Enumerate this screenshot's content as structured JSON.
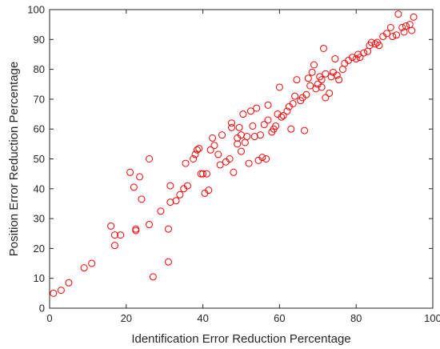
{
  "chart_data": {
    "type": "scatter",
    "title": "",
    "xlabel": "Identification Error Reduction Percentage",
    "ylabel": "Position Error Reduction Percentage",
    "xlim": [
      0,
      100
    ],
    "ylim": [
      0,
      100
    ],
    "xticks": [
      0,
      20,
      40,
      60,
      80,
      100
    ],
    "yticks": [
      0,
      10,
      20,
      30,
      40,
      50,
      60,
      70,
      80,
      90,
      100
    ],
    "grid": false,
    "marker": "circle",
    "color": "#ff0000",
    "points": [
      [
        1,
        5
      ],
      [
        3,
        6
      ],
      [
        5,
        8.5
      ],
      [
        9,
        13.5
      ],
      [
        11,
        15
      ],
      [
        16,
        27.5
      ],
      [
        17,
        21
      ],
      [
        17,
        24.5
      ],
      [
        18.5,
        24.5
      ],
      [
        21,
        45.5
      ],
      [
        22,
        40.5
      ],
      [
        22.5,
        26
      ],
      [
        22.5,
        26.5
      ],
      [
        23.5,
        44
      ],
      [
        24,
        36.5
      ],
      [
        26,
        28
      ],
      [
        26,
        50
      ],
      [
        27,
        10.5
      ],
      [
        29,
        32.5
      ],
      [
        31,
        15.5
      ],
      [
        31,
        26.5
      ],
      [
        31.5,
        35.5
      ],
      [
        31.5,
        41
      ],
      [
        33,
        36
      ],
      [
        34,
        38
      ],
      [
        35,
        40
      ],
      [
        35.5,
        48.5
      ],
      [
        36,
        41
      ],
      [
        37.5,
        50
      ],
      [
        38,
        51.5
      ],
      [
        38.5,
        53
      ],
      [
        39,
        53.5
      ],
      [
        39.5,
        45
      ],
      [
        40,
        45
      ],
      [
        40.5,
        38.5
      ],
      [
        41,
        45
      ],
      [
        41.5,
        39.5
      ],
      [
        42,
        53
      ],
      [
        42.5,
        57
      ],
      [
        43,
        54.5
      ],
      [
        44,
        51.5
      ],
      [
        44.5,
        48
      ],
      [
        45,
        58
      ],
      [
        46,
        49
      ],
      [
        47,
        50
      ],
      [
        47.5,
        60.5
      ],
      [
        47.5,
        62
      ],
      [
        48,
        45.5
      ],
      [
        49,
        55
      ],
      [
        49,
        57
      ],
      [
        49.5,
        60.5
      ],
      [
        50,
        52.5
      ],
      [
        50,
        58
      ],
      [
        50.5,
        65
      ],
      [
        51,
        55.5
      ],
      [
        51.5,
        57.5
      ],
      [
        52,
        48.5
      ],
      [
        52.5,
        66
      ],
      [
        53,
        61
      ],
      [
        53.5,
        57.5
      ],
      [
        54,
        67
      ],
      [
        54.5,
        49.5
      ],
      [
        55,
        58
      ],
      [
        55.5,
        50.5
      ],
      [
        56,
        61.5
      ],
      [
        56.5,
        50
      ],
      [
        57,
        63
      ],
      [
        57,
        68
      ],
      [
        58,
        59
      ],
      [
        58.5,
        60
      ],
      [
        59,
        61
      ],
      [
        59.5,
        65
      ],
      [
        60,
        74
      ],
      [
        60.5,
        64
      ],
      [
        61,
        64.5
      ],
      [
        62,
        66
      ],
      [
        62.5,
        67.5
      ],
      [
        63,
        60
      ],
      [
        63.5,
        68.5
      ],
      [
        64,
        71
      ],
      [
        64.5,
        76.5
      ],
      [
        65.5,
        69.5
      ],
      [
        66,
        70.5
      ],
      [
        66.5,
        59.5
      ],
      [
        67,
        71.5
      ],
      [
        67.5,
        77
      ],
      [
        68,
        74.5
      ],
      [
        68.5,
        79
      ],
      [
        69,
        81.5
      ],
      [
        69.5,
        73.5
      ],
      [
        70,
        75
      ],
      [
        70.5,
        77.5
      ],
      [
        71,
        74
      ],
      [
        71,
        76.5
      ],
      [
        71.5,
        87
      ],
      [
        72,
        70.5
      ],
      [
        72,
        78.5
      ],
      [
        73,
        72
      ],
      [
        73.5,
        77.5
      ],
      [
        74,
        79
      ],
      [
        74.5,
        83.5
      ],
      [
        75,
        78
      ],
      [
        75.5,
        76.5
      ],
      [
        76.5,
        80
      ],
      [
        77,
        82
      ],
      [
        78,
        83
      ],
      [
        79,
        84
      ],
      [
        80,
        83.5
      ],
      [
        80.5,
        85
      ],
      [
        81,
        84
      ],
      [
        82,
        85.5
      ],
      [
        83,
        86
      ],
      [
        83.5,
        88
      ],
      [
        84,
        89
      ],
      [
        85,
        88.5
      ],
      [
        85.5,
        89
      ],
      [
        86,
        88
      ],
      [
        87,
        91
      ],
      [
        88,
        92
      ],
      [
        89,
        94
      ],
      [
        89.5,
        91
      ],
      [
        90.5,
        91.5
      ],
      [
        91,
        98.5
      ],
      [
        92,
        94
      ],
      [
        92.5,
        92.5
      ],
      [
        93,
        94.5
      ],
      [
        94,
        95
      ],
      [
        94.5,
        93
      ],
      [
        95,
        97.5
      ]
    ]
  }
}
